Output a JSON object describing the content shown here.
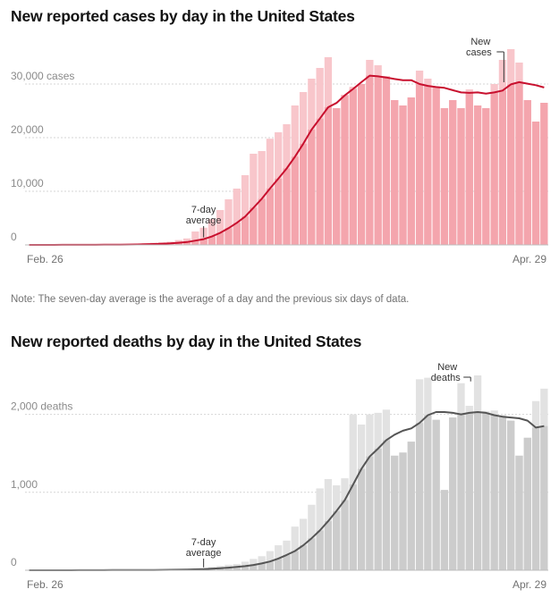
{
  "chart_data": [
    {
      "type": "bar",
      "title": "New reported cases by day in the United States",
      "y_unit_label": "cases",
      "yticks": [
        0,
        10000,
        20000,
        30000
      ],
      "ytick_labels": [
        "0",
        "10,000",
        "20,000",
        "30,000 cases"
      ],
      "ylim": [
        0,
        35000
      ],
      "x_start_label": "Feb. 26",
      "x_end_label": "Apr. 29",
      "grid": true,
      "colors": {
        "bar_light": "#f8c6cb",
        "bar_dark": "#f4a5ad",
        "line": "#c8102e"
      },
      "series": [
        {
          "name": "New cases",
          "kind": "bar",
          "values": [
            5,
            5,
            10,
            10,
            10,
            15,
            20,
            20,
            25,
            50,
            80,
            100,
            150,
            200,
            300,
            400,
            500,
            600,
            900,
            1200,
            2500,
            3200,
            4800,
            6500,
            8500,
            10500,
            13000,
            17000,
            17500,
            19800,
            21000,
            22500,
            26000,
            28500,
            31000,
            33000,
            35000,
            25500,
            28000,
            29500,
            30000,
            34500,
            33500,
            31500,
            27000,
            26000,
            27500,
            32500,
            31000,
            29500,
            25500,
            27000,
            25500,
            29000,
            26000,
            25500,
            30000,
            34500,
            36500,
            34000,
            27000,
            23000,
            26500
          ]
        },
        {
          "name": "7-day average",
          "kind": "line",
          "values": [
            5,
            5,
            6,
            8,
            9,
            11,
            13,
            16,
            19,
            25,
            34,
            47,
            64,
            86,
            119,
            164,
            221,
            291,
            393,
            531,
            800,
            1071,
            1571,
            2257,
            3114,
            4114,
            5286,
            6938,
            8581,
            10515,
            12357,
            14253,
            16443,
            18864,
            21500,
            23543,
            25672,
            26471,
            27889,
            29076,
            30357,
            31571,
            31429,
            31214,
            30929,
            30714,
            30714,
            30000,
            29643,
            29429,
            29286,
            28857,
            28429,
            28357,
            28429,
            28214,
            28429,
            28786,
            29929,
            30357,
            30071,
            29786,
            29357
          ]
        }
      ],
      "annotations": [
        "7-day average",
        "New cases"
      ]
    },
    {
      "type": "bar",
      "title": "New reported deaths by day in the United States",
      "y_unit_label": "deaths",
      "yticks": [
        0,
        1000,
        2000
      ],
      "ytick_labels": [
        "0",
        "1,000",
        "2,000 deaths"
      ],
      "ylim": [
        0,
        2500
      ],
      "x_start_label": "Feb. 26",
      "x_end_label": "Apr. 29",
      "grid": true,
      "colors": {
        "bar_light": "#e2e2e2",
        "bar_dark": "#cccccc",
        "line": "#555555"
      },
      "series": [
        {
          "name": "New deaths",
          "kind": "bar",
          "values": [
            0,
            0,
            0,
            0,
            1,
            1,
            1,
            1,
            2,
            2,
            2,
            3,
            3,
            4,
            5,
            6,
            8,
            10,
            12,
            15,
            20,
            28,
            40,
            55,
            70,
            80,
            110,
            145,
            180,
            245,
            320,
            380,
            560,
            660,
            840,
            1050,
            1170,
            1090,
            1180,
            2000,
            1870,
            2000,
            2020,
            2060,
            1470,
            1510,
            1650,
            2450,
            2470,
            1930,
            1030,
            1960,
            2400,
            2110,
            2500,
            2040,
            2050,
            1990,
            1920,
            1470,
            1700,
            2170,
            2330
          ]
        },
        {
          "name": "7-day average",
          "kind": "line",
          "values": [
            0,
            0,
            0,
            0,
            0,
            0,
            1,
            1,
            1,
            1,
            2,
            2,
            2,
            2,
            3,
            4,
            5,
            6,
            7,
            9,
            11,
            14,
            19,
            25,
            33,
            42,
            53,
            68,
            87,
            112,
            150,
            196,
            246,
            320,
            410,
            510,
            630,
            760,
            900,
            1100,
            1300,
            1460,
            1560,
            1670,
            1740,
            1790,
            1820,
            1890,
            1990,
            2030,
            2030,
            2020,
            2000,
            2020,
            2030,
            2020,
            1990,
            1970,
            1960,
            1950,
            1920,
            1830,
            1850
          ]
        }
      ],
      "annotations": [
        "7-day average",
        "New deaths"
      ]
    }
  ],
  "note": "Note: The seven-day average is the average of a day and the previous six days of data."
}
